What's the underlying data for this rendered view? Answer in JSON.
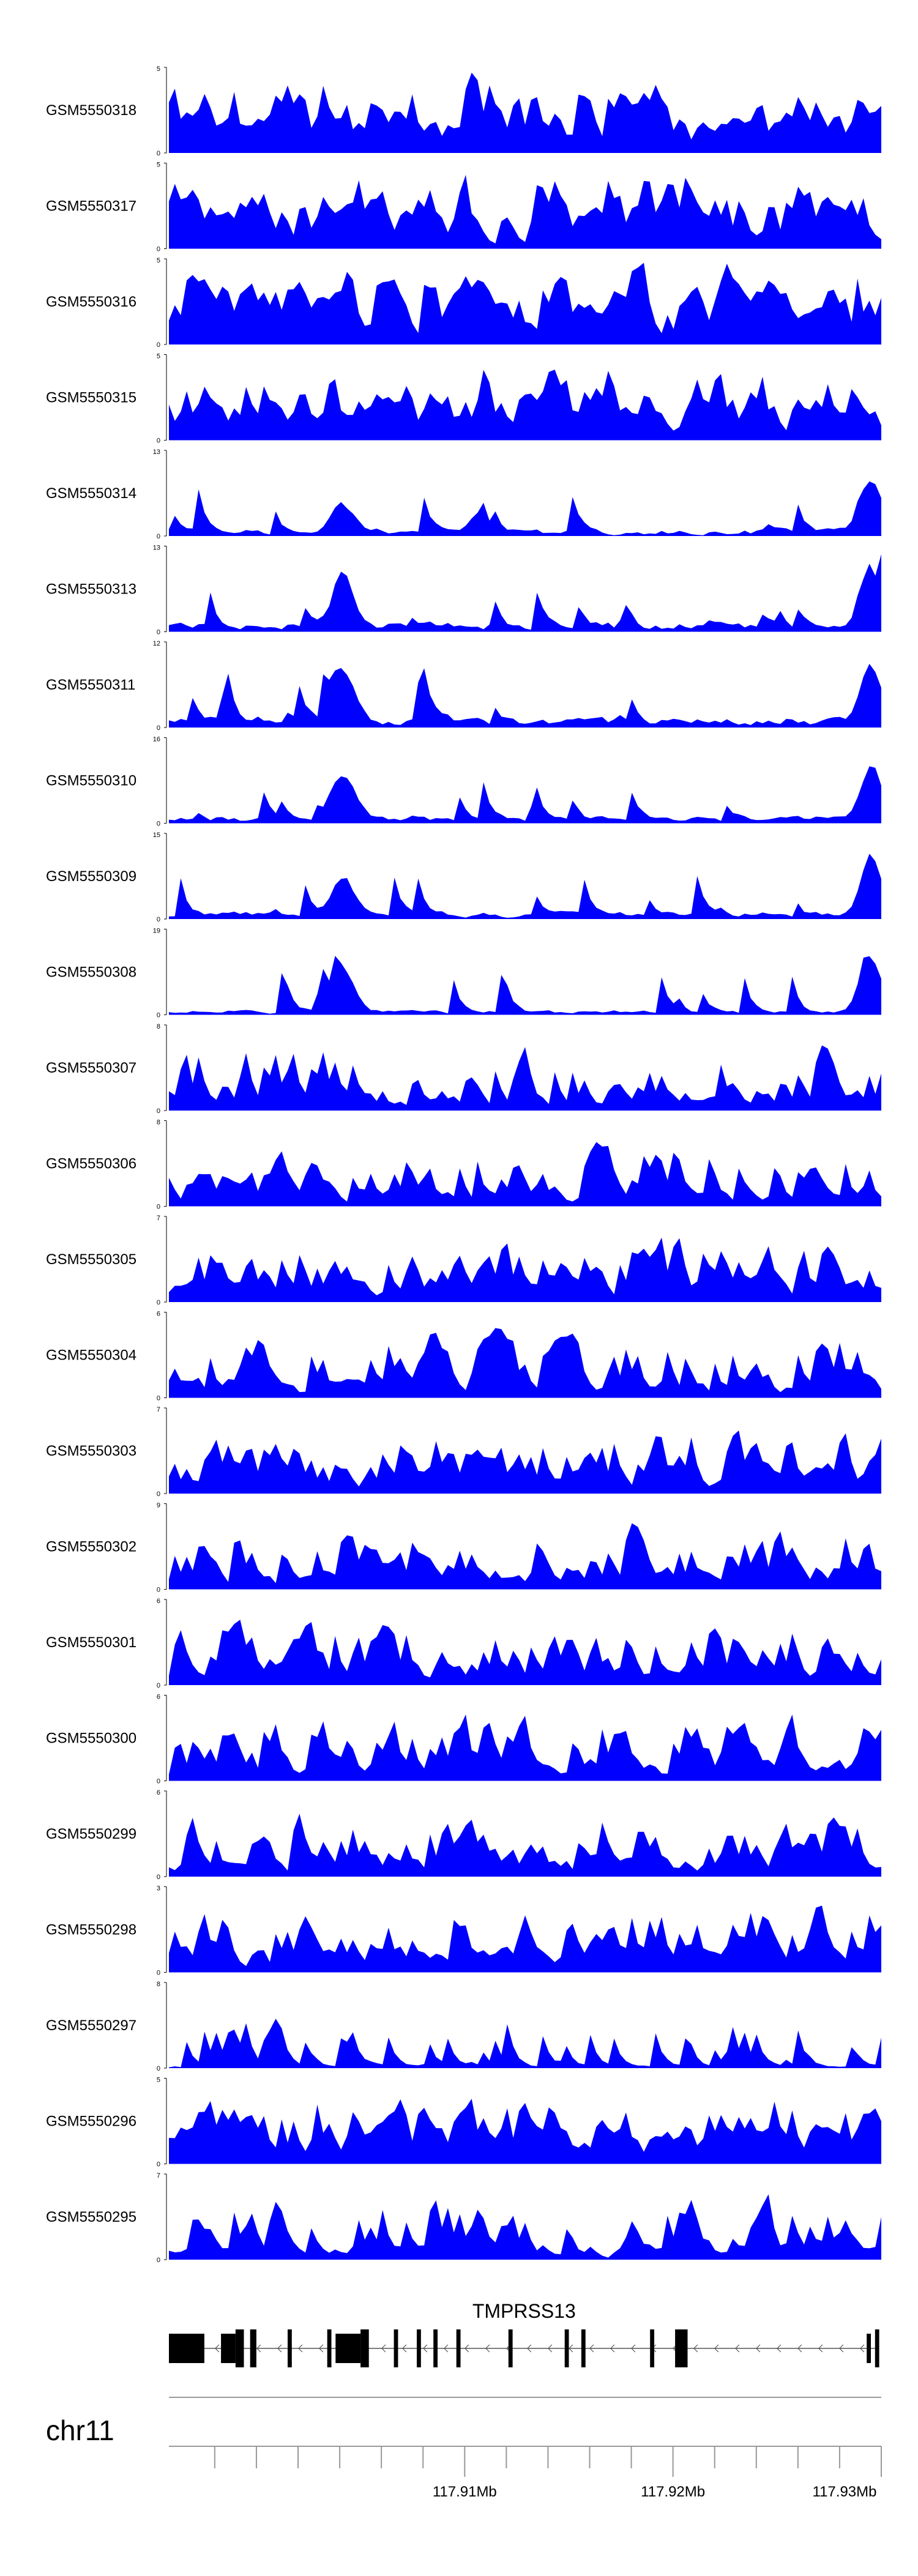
{
  "chart_data": {
    "type": "area",
    "fill_color": "#0000ff",
    "region_start": 117.8958,
    "region_end": 117.93,
    "samples": 120,
    "tracks": [
      {
        "name": "GSM5550318",
        "ymax": "5",
        "ymin": "0",
        "seed": 318,
        "baseline": 0.35,
        "spikiness": 0.5
      },
      {
        "name": "GSM5550317",
        "ymax": "5",
        "ymin": "0",
        "seed": 317,
        "baseline": 0.45,
        "spikiness": 0.5
      },
      {
        "name": "GSM5550316",
        "ymax": "5",
        "ymin": "0",
        "seed": 316,
        "baseline": 0.5,
        "spikiness": 0.5
      },
      {
        "name": "GSM5550315",
        "ymax": "5",
        "ymin": "0",
        "seed": 315,
        "baseline": 0.35,
        "spikiness": 0.5
      },
      {
        "name": "GSM5550314",
        "ymax": "13",
        "ymin": "0",
        "seed": 314,
        "baseline": 0.06,
        "spikiness": 0.15,
        "peaks": [
          [
            0.24,
            0.45
          ],
          [
            0.98,
            0.95
          ]
        ]
      },
      {
        "name": "GSM5550313",
        "ymax": "13",
        "ymin": "0",
        "seed": 313,
        "baseline": 0.08,
        "spikiness": 0.15,
        "peaks": [
          [
            0.24,
            0.8
          ],
          [
            0.98,
            0.9
          ]
        ]
      },
      {
        "name": "GSM5550311",
        "ymax": "12",
        "ymin": "0",
        "seed": 311,
        "baseline": 0.08,
        "spikiness": 0.15,
        "peaks": [
          [
            0.24,
            0.85
          ],
          [
            0.98,
            0.95
          ]
        ]
      },
      {
        "name": "GSM5550310",
        "ymax": "16",
        "ymin": "0",
        "seed": 310,
        "baseline": 0.06,
        "spikiness": 0.12,
        "peaks": [
          [
            0.24,
            0.8
          ],
          [
            0.98,
            0.95
          ]
        ]
      },
      {
        "name": "GSM5550309",
        "ymax": "15",
        "ymin": "0",
        "seed": 309,
        "baseline": 0.06,
        "spikiness": 0.12,
        "peaks": [
          [
            0.24,
            0.65
          ],
          [
            0.98,
            0.95
          ]
        ]
      },
      {
        "name": "GSM5550308",
        "ymax": "19",
        "ymin": "0",
        "seed": 308,
        "baseline": 0.04,
        "spikiness": 0.1,
        "peaks": [
          [
            0.24,
            0.65
          ],
          [
            0.98,
            0.95
          ]
        ]
      },
      {
        "name": "GSM5550307",
        "ymax": "8",
        "ymin": "0",
        "seed": 307,
        "baseline": 0.1,
        "spikiness": 0.6
      },
      {
        "name": "GSM5550306",
        "ymax": "8",
        "ymin": "0",
        "seed": 306,
        "baseline": 0.1,
        "spikiness": 0.6
      },
      {
        "name": "GSM5550305",
        "ymax": "7",
        "ymin": "0",
        "seed": 305,
        "baseline": 0.15,
        "spikiness": 0.65
      },
      {
        "name": "GSM5550304",
        "ymax": "6",
        "ymin": "0",
        "seed": 304,
        "baseline": 0.12,
        "spikiness": 0.65
      },
      {
        "name": "GSM5550303",
        "ymax": "7",
        "ymin": "0",
        "seed": 303,
        "baseline": 0.15,
        "spikiness": 0.6
      },
      {
        "name": "GSM5550302",
        "ymax": "9",
        "ymin": "0",
        "seed": 302,
        "baseline": 0.12,
        "spikiness": 0.55
      },
      {
        "name": "GSM5550301",
        "ymax": "6",
        "ymin": "0",
        "seed": 301,
        "baseline": 0.12,
        "spikiness": 0.65
      },
      {
        "name": "GSM5550300",
        "ymax": "6",
        "ymin": "0",
        "seed": 300,
        "baseline": 0.15,
        "spikiness": 0.6
      },
      {
        "name": "GSM5550299",
        "ymax": "6",
        "ymin": "0",
        "seed": 299,
        "baseline": 0.15,
        "spikiness": 0.6
      },
      {
        "name": "GSM5550298",
        "ymax": "3",
        "ymin": "0",
        "seed": 298,
        "baseline": 0.2,
        "spikiness": 0.6
      },
      {
        "name": "GSM5550297",
        "ymax": "8",
        "ymin": "0",
        "seed": 297,
        "baseline": 0.02,
        "spikiness": 0.5
      },
      {
        "name": "GSM5550296",
        "ymax": "5",
        "ymin": "0",
        "seed": 296,
        "baseline": 0.25,
        "spikiness": 0.6
      },
      {
        "name": "GSM5550295",
        "ymax": "7",
        "ymin": "0",
        "seed": 295,
        "baseline": 0.12,
        "spikiness": 0.55
      }
    ],
    "gene": {
      "name": "TMPRSS13",
      "strand": "-",
      "exons": [
        {
          "start": 117.8958,
          "end": 117.8975,
          "tall": false
        },
        {
          "start": 117.8983,
          "end": 117.899,
          "tall": false
        },
        {
          "start": 117.899,
          "end": 117.8994,
          "tall": true
        },
        {
          "start": 117.8997,
          "end": 117.9,
          "tall": true
        },
        {
          "start": 117.9015,
          "end": 117.9017,
          "tall": true
        },
        {
          "start": 117.9034,
          "end": 117.9036,
          "tall": true
        },
        {
          "start": 117.9038,
          "end": 117.905,
          "tall": false
        },
        {
          "start": 117.905,
          "end": 117.9054,
          "tall": true
        },
        {
          "start": 117.9066,
          "end": 117.9068,
          "tall": true
        },
        {
          "start": 117.9077,
          "end": 117.9079,
          "tall": true
        },
        {
          "start": 117.9085,
          "end": 117.9087,
          "tall": true
        },
        {
          "start": 117.9096,
          "end": 117.9098,
          "tall": true
        },
        {
          "start": 117.9121,
          "end": 117.9123,
          "tall": true
        },
        {
          "start": 117.9148,
          "end": 117.915,
          "tall": true
        },
        {
          "start": 117.9156,
          "end": 117.9158,
          "tall": true
        },
        {
          "start": 117.9189,
          "end": 117.9191,
          "tall": true
        },
        {
          "start": 117.9201,
          "end": 117.9207,
          "tall": true
        },
        {
          "start": 117.9293,
          "end": 117.9295,
          "tall": false
        },
        {
          "start": 117.9297,
          "end": 117.9299,
          "tall": true
        }
      ]
    },
    "axis": {
      "chrom": "chr11",
      "minor_ticks": [
        117.898,
        117.9,
        117.902,
        117.904,
        117.906,
        117.908,
        117.91,
        117.912,
        117.914,
        117.916,
        117.918,
        117.92,
        117.922,
        117.924,
        117.926,
        117.928,
        117.93
      ],
      "major_ticks": [
        117.91,
        117.92,
        117.93
      ],
      "major_tick_labels": [
        "117.91Mb",
        "117.92Mb",
        "117.93Mb"
      ]
    }
  }
}
